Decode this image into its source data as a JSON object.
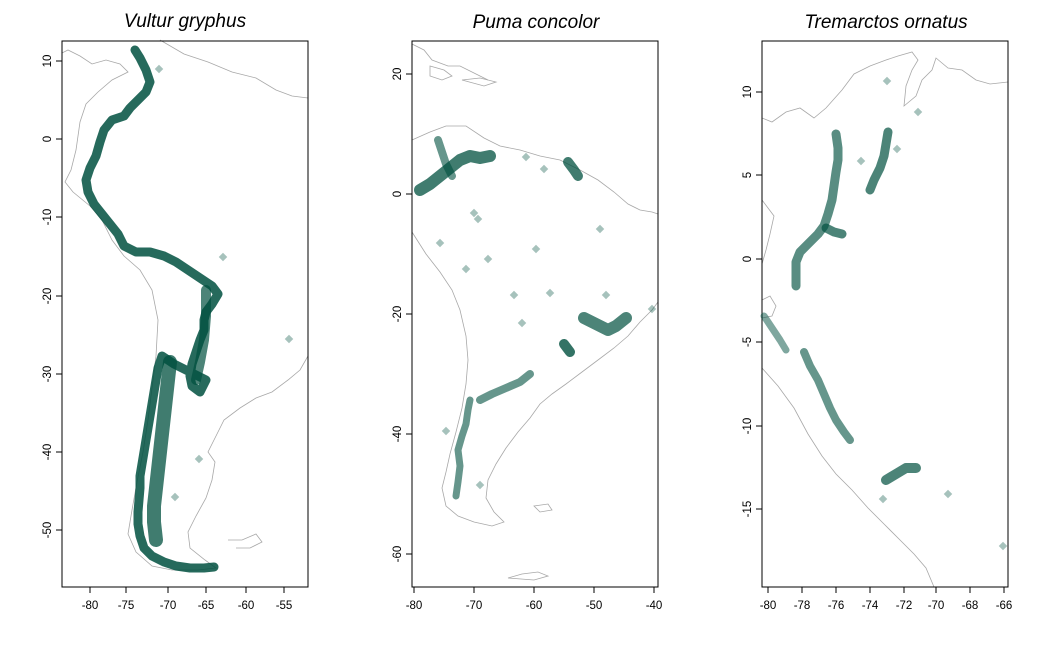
{
  "colors": {
    "points": "#00503f",
    "coastline": "#a8a8a8",
    "frame": "#000000"
  },
  "panels": [
    {
      "title": "Vultur gryphus",
      "x_ticks": [
        "-80",
        "-75",
        "-70",
        "-65",
        "-60",
        "-55"
      ],
      "y_ticks": [
        "10",
        "0",
        "-10",
        "-20",
        "-30",
        "-40",
        "-50"
      ]
    },
    {
      "title": "Puma concolor",
      "x_ticks": [
        "-80",
        "-70",
        "-60",
        "-50",
        "-40"
      ],
      "y_ticks": [
        "20",
        "0",
        "-20",
        "-40",
        "-60"
      ]
    },
    {
      "title": "Tremarctos ornatus",
      "x_ticks": [
        "-80",
        "-78",
        "-76",
        "-74",
        "-72",
        "-70",
        "-68",
        "-66"
      ],
      "y_ticks": [
        "10",
        "5",
        "0",
        "-5",
        "-10",
        "-15"
      ]
    }
  ]
}
